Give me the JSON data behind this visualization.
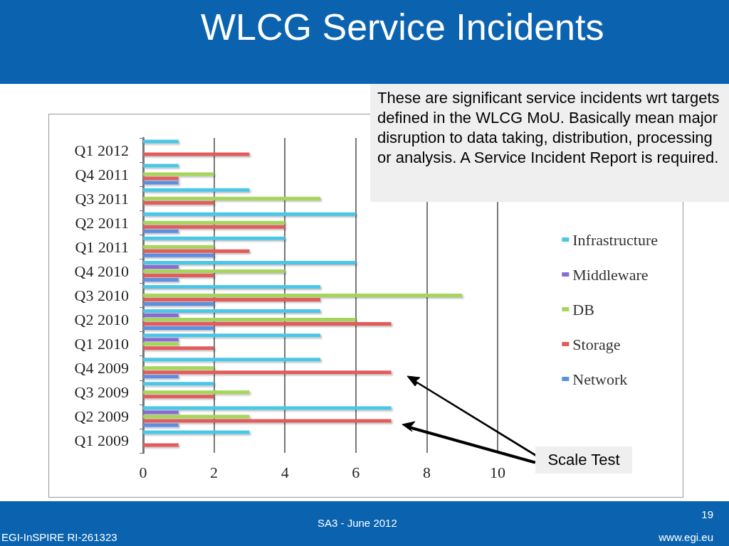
{
  "chart_data": {
    "type": "bar",
    "orientation": "horizontal",
    "title": "WLCG Service Incidents",
    "categories": [
      "Q1 2012",
      "Q4 2011",
      "Q3 2011",
      "Q2 2011",
      "Q1 2011",
      "Q4 2010",
      "Q3 2010",
      "Q2 2010",
      "Q1 2010",
      "Q4 2009",
      "Q3 2009",
      "Q2 2009",
      "Q1 2009"
    ],
    "series": [
      {
        "name": "Infrastructure",
        "color": "#4cc6e6",
        "values": [
          1,
          1,
          3,
          6,
          4,
          6,
          5,
          5,
          5,
          5,
          2,
          7,
          3
        ]
      },
      {
        "name": "Middleware",
        "color": "#8a6bd1",
        "values": [
          0,
          0,
          0,
          0,
          0,
          1,
          0,
          1,
          1,
          0,
          0,
          1,
          0
        ]
      },
      {
        "name": "DB",
        "color": "#a5d55a",
        "values": [
          0,
          2,
          5,
          4,
          2,
          4,
          9,
          6,
          1,
          2,
          3,
          3,
          0
        ]
      },
      {
        "name": "Storage",
        "color": "#e25c5c",
        "values": [
          3,
          1,
          2,
          4,
          3,
          2,
          5,
          7,
          2,
          7,
          2,
          7,
          1
        ]
      },
      {
        "name": "Network",
        "color": "#5b8fe0",
        "values": [
          0,
          1,
          0,
          1,
          2,
          1,
          2,
          2,
          0,
          1,
          0,
          1,
          0
        ]
      }
    ],
    "xlim": [
      0,
      10
    ],
    "xticks": [
      0,
      2,
      4,
      6,
      8,
      10
    ],
    "grid": "x",
    "legend": "right",
    "annotations": [
      "These are significant service incidents wrt targets defined in the WLCG MoU. Basically mean major disruption to data taking, distribution, processing or analysis. A Service Incident Report is required.",
      "Scale Test",
      "SA3 - June 2012",
      "19",
      "EGI-InSPIRE RI-261323",
      "www.egi.eu"
    ]
  }
}
